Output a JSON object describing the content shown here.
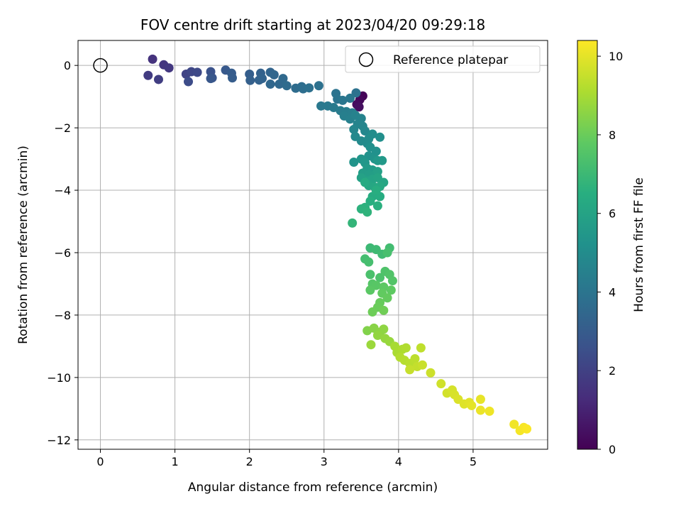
{
  "chart_data": {
    "type": "scatter",
    "title": "FOV centre drift starting at 2023/04/20 09:29:18",
    "xlabel": "Angular distance from reference (arcmin)",
    "ylabel": "Rotation from reference (arcmin)",
    "xlim": [
      -0.3,
      6.0
    ],
    "ylim": [
      -12.3,
      0.8
    ],
    "xticks": [
      0,
      1,
      2,
      3,
      4,
      5
    ],
    "yticks": [
      0,
      -2,
      -4,
      -6,
      -8,
      -10,
      -12
    ],
    "grid": true,
    "legend": {
      "placement": "top-right",
      "entries": [
        "Reference platepar"
      ]
    },
    "reference_point": {
      "x": 0,
      "y": 0
    },
    "colorbar": {
      "label": "Hours from first FF file",
      "colormap": "viridis",
      "range": [
        0,
        10.4
      ],
      "ticks": [
        0,
        2,
        4,
        6,
        8,
        10
      ]
    },
    "series": [
      {
        "points": [
          {
            "x": 3.52,
            "y": -0.98,
            "c": 0.1
          },
          {
            "x": 3.48,
            "y": -1.1,
            "c": 0.2
          },
          {
            "x": 3.44,
            "y": -1.25,
            "c": 0.3
          },
          {
            "x": 3.47,
            "y": -1.33,
            "c": 0.4
          },
          {
            "x": 0.7,
            "y": 0.2,
            "c": 1.5
          },
          {
            "x": 0.85,
            "y": 0.02,
            "c": 1.6
          },
          {
            "x": 0.92,
            "y": -0.08,
            "c": 1.7
          },
          {
            "x": 0.64,
            "y": -0.32,
            "c": 1.8
          },
          {
            "x": 0.78,
            "y": -0.45,
            "c": 1.9
          },
          {
            "x": 1.15,
            "y": -0.28,
            "c": 2.1
          },
          {
            "x": 1.22,
            "y": -0.2,
            "c": 2.2
          },
          {
            "x": 1.3,
            "y": -0.22,
            "c": 2.3
          },
          {
            "x": 1.18,
            "y": -0.52,
            "c": 2.4
          },
          {
            "x": 1.48,
            "y": -0.2,
            "c": 2.6
          },
          {
            "x": 1.5,
            "y": -0.4,
            "c": 2.7
          },
          {
            "x": 1.48,
            "y": -0.42,
            "c": 2.8
          },
          {
            "x": 1.68,
            "y": -0.15,
            "c": 2.9
          },
          {
            "x": 1.76,
            "y": -0.25,
            "c": 3.0
          },
          {
            "x": 1.77,
            "y": -0.4,
            "c": 3.05
          },
          {
            "x": 2.0,
            "y": -0.28,
            "c": 3.1
          },
          {
            "x": 2.01,
            "y": -0.48,
            "c": 3.15
          },
          {
            "x": 2.15,
            "y": -0.25,
            "c": 3.2
          },
          {
            "x": 2.13,
            "y": -0.47,
            "c": 3.25
          },
          {
            "x": 2.17,
            "y": -0.42,
            "c": 3.3
          },
          {
            "x": 2.28,
            "y": -0.22,
            "c": 3.35
          },
          {
            "x": 2.33,
            "y": -0.3,
            "c": 3.4
          },
          {
            "x": 2.28,
            "y": -0.6,
            "c": 3.45
          },
          {
            "x": 2.4,
            "y": -0.6,
            "c": 3.5
          },
          {
            "x": 2.45,
            "y": -0.42,
            "c": 3.55
          },
          {
            "x": 2.5,
            "y": -0.65,
            "c": 3.6
          },
          {
            "x": 2.62,
            "y": -0.73,
            "c": 3.65
          },
          {
            "x": 2.7,
            "y": -0.68,
            "c": 3.7
          },
          {
            "x": 2.72,
            "y": -0.75,
            "c": 3.75
          },
          {
            "x": 2.8,
            "y": -0.72,
            "c": 3.8
          },
          {
            "x": 2.93,
            "y": -0.65,
            "c": 3.85
          },
          {
            "x": 3.43,
            "y": -0.88,
            "c": 3.9
          },
          {
            "x": 3.16,
            "y": -0.9,
            "c": 3.95
          },
          {
            "x": 3.18,
            "y": -1.08,
            "c": 4.0
          },
          {
            "x": 3.25,
            "y": -1.12,
            "c": 4.05
          },
          {
            "x": 3.35,
            "y": -1.05,
            "c": 4.1
          },
          {
            "x": 2.96,
            "y": -1.3,
            "c": 4.15
          },
          {
            "x": 3.05,
            "y": -1.3,
            "c": 4.2
          },
          {
            "x": 3.13,
            "y": -1.35,
            "c": 4.25
          },
          {
            "x": 3.22,
            "y": -1.45,
            "c": 4.3
          },
          {
            "x": 3.3,
            "y": -1.48,
            "c": 4.35
          },
          {
            "x": 3.38,
            "y": -1.52,
            "c": 4.4
          },
          {
            "x": 3.27,
            "y": -1.62,
            "c": 4.45
          },
          {
            "x": 3.35,
            "y": -1.72,
            "c": 4.5
          },
          {
            "x": 3.42,
            "y": -1.6,
            "c": 4.55
          },
          {
            "x": 3.5,
            "y": -1.7,
            "c": 4.6
          },
          {
            "x": 3.45,
            "y": -1.88,
            "c": 4.65
          },
          {
            "x": 3.52,
            "y": -1.95,
            "c": 4.7
          },
          {
            "x": 3.4,
            "y": -2.05,
            "c": 4.75
          },
          {
            "x": 3.55,
            "y": -2.1,
            "c": 4.8
          },
          {
            "x": 3.42,
            "y": -2.28,
            "c": 4.85
          },
          {
            "x": 3.5,
            "y": -2.42,
            "c": 4.9
          },
          {
            "x": 3.58,
            "y": -2.5,
            "c": 4.95
          },
          {
            "x": 3.6,
            "y": -2.35,
            "c": 5.0
          },
          {
            "x": 3.65,
            "y": -2.2,
            "c": 5.05
          },
          {
            "x": 3.75,
            "y": -2.3,
            "c": 5.1
          },
          {
            "x": 3.62,
            "y": -2.62,
            "c": 5.15
          },
          {
            "x": 3.7,
            "y": -2.75,
            "c": 5.2
          },
          {
            "x": 3.6,
            "y": -2.9,
            "c": 5.25
          },
          {
            "x": 3.68,
            "y": -3.0,
            "c": 5.3
          },
          {
            "x": 3.4,
            "y": -3.1,
            "c": 5.35
          },
          {
            "x": 3.5,
            "y": -3.0,
            "c": 5.4
          },
          {
            "x": 3.55,
            "y": -3.12,
            "c": 5.45
          },
          {
            "x": 3.72,
            "y": -3.05,
            "c": 5.5
          },
          {
            "x": 3.78,
            "y": -3.05,
            "c": 5.55
          },
          {
            "x": 3.58,
            "y": -3.3,
            "c": 5.6
          },
          {
            "x": 3.65,
            "y": -3.35,
            "c": 5.65
          },
          {
            "x": 3.52,
            "y": -3.45,
            "c": 5.7
          },
          {
            "x": 3.6,
            "y": -3.5,
            "c": 5.75
          },
          {
            "x": 3.67,
            "y": -3.52,
            "c": 5.8
          },
          {
            "x": 3.72,
            "y": -3.4,
            "c": 5.85
          },
          {
            "x": 3.5,
            "y": -3.6,
            "c": 5.9
          },
          {
            "x": 3.58,
            "y": -3.7,
            "c": 5.95
          },
          {
            "x": 3.65,
            "y": -3.65,
            "c": 6.0
          },
          {
            "x": 3.72,
            "y": -3.6,
            "c": 6.05
          },
          {
            "x": 3.8,
            "y": -3.75,
            "c": 6.1
          },
          {
            "x": 3.6,
            "y": -3.85,
            "c": 6.15
          },
          {
            "x": 3.68,
            "y": -3.9,
            "c": 6.2
          },
          {
            "x": 3.75,
            "y": -3.88,
            "c": 6.25
          },
          {
            "x": 3.55,
            "y": -3.75,
            "c": 6.3
          },
          {
            "x": 3.65,
            "y": -4.2,
            "c": 6.35
          },
          {
            "x": 3.75,
            "y": -4.2,
            "c": 6.4
          },
          {
            "x": 3.7,
            "y": -4.0,
            "c": 6.45
          },
          {
            "x": 3.62,
            "y": -4.35,
            "c": 6.5
          },
          {
            "x": 3.72,
            "y": -4.5,
            "c": 6.55
          },
          {
            "x": 3.55,
            "y": -4.55,
            "c": 6.6
          },
          {
            "x": 3.5,
            "y": -4.6,
            "c": 6.65
          },
          {
            "x": 3.58,
            "y": -4.7,
            "c": 6.7
          },
          {
            "x": 3.38,
            "y": -5.05,
            "c": 6.8
          },
          {
            "x": 3.62,
            "y": -5.85,
            "c": 7.0
          },
          {
            "x": 3.7,
            "y": -5.9,
            "c": 7.05
          },
          {
            "x": 3.78,
            "y": -6.05,
            "c": 7.1
          },
          {
            "x": 3.88,
            "y": -5.85,
            "c": 7.15
          },
          {
            "x": 3.55,
            "y": -6.2,
            "c": 7.2
          },
          {
            "x": 3.6,
            "y": -6.3,
            "c": 7.25
          },
          {
            "x": 3.85,
            "y": -6.0,
            "c": 7.3
          },
          {
            "x": 3.62,
            "y": -6.7,
            "c": 7.35
          },
          {
            "x": 3.75,
            "y": -6.8,
            "c": 7.4
          },
          {
            "x": 3.82,
            "y": -6.6,
            "c": 7.45
          },
          {
            "x": 3.88,
            "y": -6.7,
            "c": 7.5
          },
          {
            "x": 3.92,
            "y": -6.9,
            "c": 7.55
          },
          {
            "x": 3.65,
            "y": -7.0,
            "c": 7.6
          },
          {
            "x": 3.7,
            "y": -7.05,
            "c": 7.65
          },
          {
            "x": 3.62,
            "y": -7.2,
            "c": 7.7
          },
          {
            "x": 3.8,
            "y": -7.1,
            "c": 7.75
          },
          {
            "x": 3.9,
            "y": -7.2,
            "c": 7.8
          },
          {
            "x": 3.78,
            "y": -7.3,
            "c": 7.85
          },
          {
            "x": 3.85,
            "y": -7.45,
            "c": 7.9
          },
          {
            "x": 3.75,
            "y": -7.6,
            "c": 7.95
          },
          {
            "x": 3.72,
            "y": -7.75,
            "c": 8.0
          },
          {
            "x": 3.65,
            "y": -7.9,
            "c": 8.05
          },
          {
            "x": 3.8,
            "y": -7.85,
            "c": 8.1
          },
          {
            "x": 3.58,
            "y": -8.5,
            "c": 8.4
          },
          {
            "x": 3.67,
            "y": -8.42,
            "c": 8.5
          },
          {
            "x": 3.75,
            "y": -8.55,
            "c": 8.55
          },
          {
            "x": 3.8,
            "y": -8.45,
            "c": 8.6
          },
          {
            "x": 3.72,
            "y": -8.65,
            "c": 8.65
          },
          {
            "x": 3.82,
            "y": -8.75,
            "c": 8.7
          },
          {
            "x": 3.88,
            "y": -8.85,
            "c": 8.75
          },
          {
            "x": 3.63,
            "y": -8.95,
            "c": 8.8
          },
          {
            "x": 3.95,
            "y": -9.0,
            "c": 9.0
          },
          {
            "x": 3.98,
            "y": -9.2,
            "c": 9.05
          },
          {
            "x": 4.05,
            "y": -9.1,
            "c": 9.1
          },
          {
            "x": 4.1,
            "y": -9.05,
            "c": 9.15
          },
          {
            "x": 4.02,
            "y": -9.35,
            "c": 9.2
          },
          {
            "x": 4.08,
            "y": -9.45,
            "c": 9.25
          },
          {
            "x": 4.15,
            "y": -9.55,
            "c": 9.3
          },
          {
            "x": 4.22,
            "y": -9.4,
            "c": 9.35
          },
          {
            "x": 4.3,
            "y": -9.05,
            "c": 9.4
          },
          {
            "x": 4.25,
            "y": -9.65,
            "c": 9.45
          },
          {
            "x": 4.15,
            "y": -9.75,
            "c": 9.5
          },
          {
            "x": 4.32,
            "y": -9.6,
            "c": 9.55
          },
          {
            "x": 4.43,
            "y": -9.85,
            "c": 9.6
          },
          {
            "x": 4.57,
            "y": -10.2,
            "c": 9.65
          },
          {
            "x": 4.65,
            "y": -10.5,
            "c": 9.7
          },
          {
            "x": 4.72,
            "y": -10.4,
            "c": 9.75
          },
          {
            "x": 4.75,
            "y": -10.55,
            "c": 9.8
          },
          {
            "x": 4.8,
            "y": -10.7,
            "c": 9.85
          },
          {
            "x": 4.88,
            "y": -10.85,
            "c": 9.9
          },
          {
            "x": 4.95,
            "y": -10.8,
            "c": 9.95
          },
          {
            "x": 4.98,
            "y": -10.9,
            "c": 10.0
          },
          {
            "x": 5.1,
            "y": -10.7,
            "c": 10.05
          },
          {
            "x": 5.1,
            "y": -11.05,
            "c": 10.1
          },
          {
            "x": 5.22,
            "y": -11.08,
            "c": 10.15
          },
          {
            "x": 5.55,
            "y": -11.5,
            "c": 10.2
          },
          {
            "x": 5.63,
            "y": -11.7,
            "c": 10.25
          },
          {
            "x": 5.68,
            "y": -11.6,
            "c": 10.3
          },
          {
            "x": 5.72,
            "y": -11.65,
            "c": 10.35
          }
        ]
      }
    ]
  }
}
